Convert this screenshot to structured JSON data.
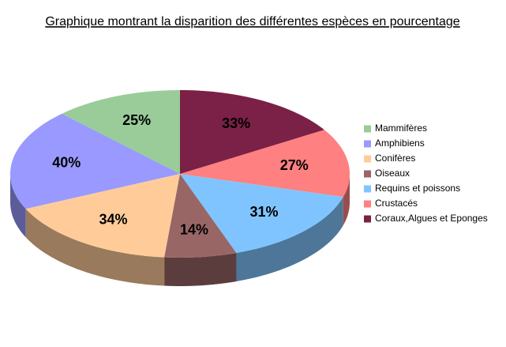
{
  "chart_data": {
    "type": "pie3d",
    "title": "Graphique montrant la disparition des différentes espèces en pourcentage",
    "categories": [
      "Mammifères",
      "Amphibiens",
      "Conifères",
      "Oiseaux",
      "Requins et poissons",
      "Crustacés",
      "Coraux,Algues et Eponges"
    ],
    "values": [
      25,
      40,
      34,
      14,
      31,
      27,
      33
    ],
    "value_labels": [
      "25%",
      "40%",
      "34%",
      "14%",
      "31%",
      "27%",
      "33%"
    ],
    "colors": [
      "#99cc99",
      "#9999ff",
      "#ffcc99",
      "#996666",
      "#80c4ff",
      "#ff8080",
      "#7b2046"
    ],
    "legend": "right"
  }
}
